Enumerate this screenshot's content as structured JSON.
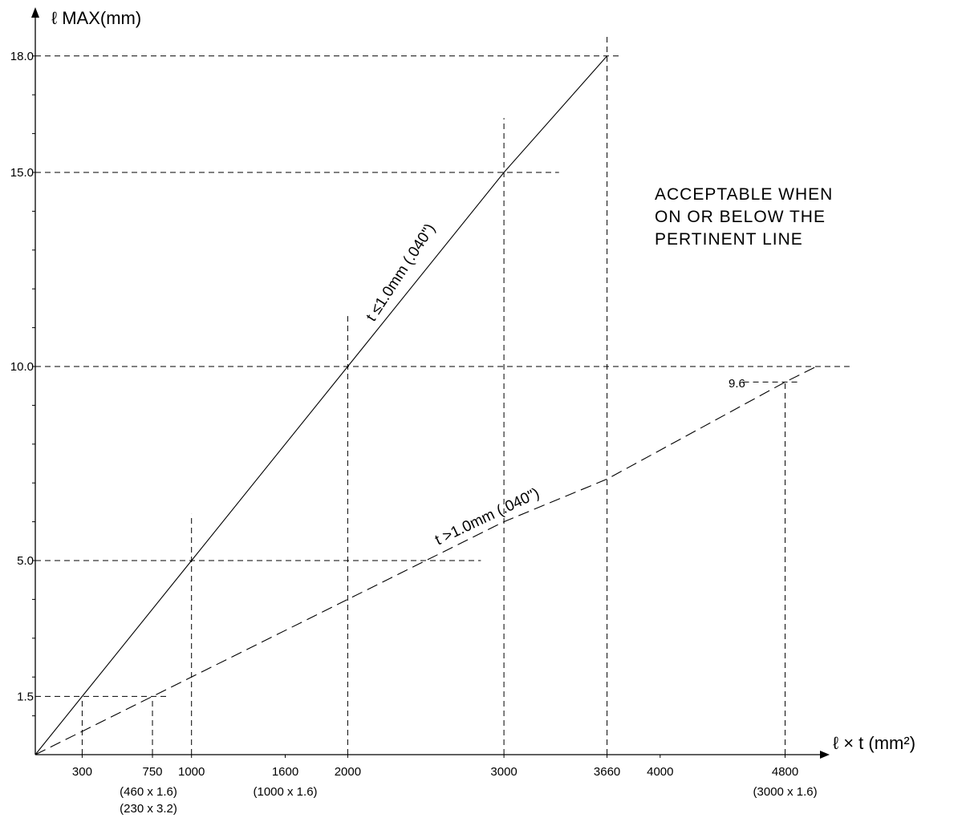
{
  "chart_data": {
    "type": "line",
    "y_axis_label": "ℓ  MAX(mm)",
    "x_axis_label": "ℓ × t (mm²)",
    "x_ticks": [
      {
        "value": 300,
        "label": "300"
      },
      {
        "value": 750,
        "label": "750"
      },
      {
        "value": 1000,
        "label": "1000"
      },
      {
        "value": 1600,
        "label": "1600"
      },
      {
        "value": 2000,
        "label": "2000"
      },
      {
        "value": 3000,
        "label": "3000"
      },
      {
        "value": 3660,
        "label": "3660"
      },
      {
        "value": 4000,
        "label": "4000"
      },
      {
        "value": 4800,
        "label": "4800"
      }
    ],
    "x_sublabels": [
      {
        "value": 750,
        "lines": [
          "(460 x 1.6)",
          "(230 x 3.2)"
        ]
      },
      {
        "value": 1600,
        "lines": [
          "(1000 x 1.6)"
        ]
      },
      {
        "value": 4800,
        "lines": [
          "(3000 x 1.6)"
        ]
      }
    ],
    "y_ticks": [
      {
        "value": 1.5,
        "label": "1.5"
      },
      {
        "value": 5,
        "label": "5.0"
      },
      {
        "value": 10,
        "label": "10.0"
      },
      {
        "value": 15,
        "label": "15.0"
      },
      {
        "value": 18,
        "label": "18.0"
      }
    ],
    "series": [
      {
        "label": "t ≤1.0mm (.040\")",
        "style": "solid",
        "points": [
          [
            0,
            0
          ],
          [
            300,
            1.5
          ],
          [
            1000,
            5
          ],
          [
            2000,
            10
          ],
          [
            3000,
            15
          ],
          [
            3660,
            18
          ]
        ]
      },
      {
        "label": "t >1.0mm (.040\")",
        "style": "dashed",
        "points": [
          [
            0,
            0
          ],
          [
            750,
            1.5
          ],
          [
            2000,
            4
          ],
          [
            3000,
            6
          ],
          [
            3660,
            7.1
          ],
          [
            4800,
            9.6
          ],
          [
            5000,
            10
          ]
        ]
      }
    ],
    "annotation": {
      "lines": [
        "ACCEPTABLE WHEN",
        "ON OR BELOW THE",
        "PERTINENT LINE"
      ]
    },
    "point_label": {
      "x": 4800,
      "y": 9.6,
      "text": "9.6"
    }
  }
}
